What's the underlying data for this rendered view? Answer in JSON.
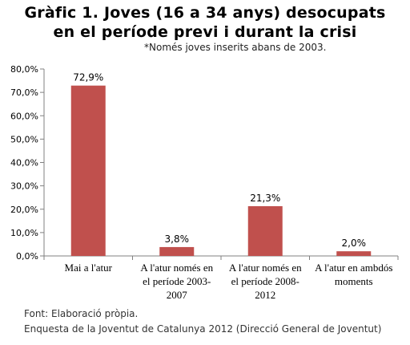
{
  "title_line1": "Gràfic 1. Joves (16 a 34 anys) desocupats",
  "title_line2": "en el període previ i durant la crisi",
  "subtitle": "*Només joves inserits abans de 2003.",
  "source_line1": "Font: Elaboració pròpia.",
  "source_line2": "Enquesta de la Joventut de Catalunya 2012 (Direcció General de Joventut)",
  "colors": {
    "bar": "#c0504d",
    "axis": "#808080"
  },
  "chart_data": {
    "type": "bar",
    "categories": [
      [
        "Mai a l'atur"
      ],
      [
        "A l'atur només en",
        "el període 2003-",
        "2007"
      ],
      [
        "A l'atur només en",
        "el període 2008-",
        "2012"
      ],
      [
        "A l'atur en ambdós",
        "moments"
      ]
    ],
    "values": [
      72.9,
      3.8,
      21.3,
      2.0
    ],
    "data_labels": [
      "72,9%",
      "3,8%",
      "21,3%",
      "2,0%"
    ],
    "y_ticks": [
      "0,0%",
      "10,0%",
      "20,0%",
      "30,0%",
      "40,0%",
      "50,0%",
      "60,0%",
      "70,0%",
      "80,0%"
    ],
    "ylim": [
      0,
      80
    ],
    "grid": false,
    "legend": "none"
  }
}
